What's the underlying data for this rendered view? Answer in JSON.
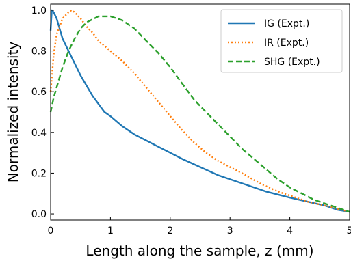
{
  "chart_data": {
    "type": "line",
    "title": "",
    "xlabel": "Length along the sample, z (mm)",
    "ylabel": "Normalized intensity",
    "xlim": [
      0,
      5
    ],
    "ylim": [
      -0.03,
      1.03
    ],
    "x_ticks": [
      0,
      1,
      2,
      3,
      4,
      5
    ],
    "x_tick_labels": [
      "0",
      "1",
      "2",
      "3",
      "4",
      "5"
    ],
    "y_ticks": [
      0.0,
      0.2,
      0.4,
      0.6,
      0.8,
      1.0
    ],
    "y_tick_labels": [
      "0.0",
      "0.2",
      "0.4",
      "0.6",
      "0.8",
      "1.0"
    ],
    "grid": false,
    "legend_position": "top-right",
    "series": [
      {
        "name": "IG (Expt.)",
        "color": "#1f77b4",
        "style": "solid",
        "x": [
          0,
          0.02,
          0.05,
          0.1,
          0.15,
          0.2,
          0.3,
          0.4,
          0.5,
          0.6,
          0.7,
          0.8,
          0.9,
          1.0,
          1.2,
          1.4,
          1.6,
          1.8,
          2.0,
          2.2,
          2.5,
          2.8,
          3.0,
          3.3,
          3.6,
          4.0,
          4.3,
          4.6,
          4.8,
          5.0
        ],
        "y": [
          0.9,
          1.0,
          0.99,
          0.96,
          0.91,
          0.86,
          0.8,
          0.74,
          0.68,
          0.63,
          0.58,
          0.54,
          0.5,
          0.48,
          0.43,
          0.39,
          0.36,
          0.33,
          0.3,
          0.27,
          0.23,
          0.19,
          0.17,
          0.14,
          0.11,
          0.08,
          0.06,
          0.04,
          0.02,
          0.01
        ]
      },
      {
        "name": "IR (Expt.)",
        "color": "#ff7f0e",
        "style": "dotted",
        "x": [
          0,
          0.05,
          0.1,
          0.2,
          0.3,
          0.35,
          0.4,
          0.5,
          0.6,
          0.7,
          0.8,
          1.0,
          1.2,
          1.4,
          1.6,
          1.8,
          2.0,
          2.2,
          2.4,
          2.6,
          2.8,
          3.0,
          3.2,
          3.5,
          3.8,
          4.0,
          4.3,
          4.6,
          5.0
        ],
        "y": [
          0.6,
          0.78,
          0.88,
          0.96,
          0.99,
          1.0,
          0.99,
          0.96,
          0.92,
          0.89,
          0.85,
          0.8,
          0.75,
          0.69,
          0.62,
          0.55,
          0.48,
          0.41,
          0.35,
          0.3,
          0.26,
          0.23,
          0.2,
          0.15,
          0.11,
          0.09,
          0.06,
          0.04,
          0.01
        ]
      },
      {
        "name": "SHG (Expt.)",
        "color": "#2ca02c",
        "style": "dashed",
        "x": [
          0,
          0.05,
          0.1,
          0.2,
          0.3,
          0.4,
          0.5,
          0.6,
          0.8,
          1.0,
          1.2,
          1.4,
          1.6,
          1.8,
          2.0,
          2.2,
          2.4,
          2.6,
          2.8,
          3.0,
          3.2,
          3.4,
          3.6,
          3.8,
          4.0,
          4.2,
          4.4,
          4.6,
          4.8,
          5.0
        ],
        "y": [
          0.5,
          0.57,
          0.62,
          0.72,
          0.8,
          0.86,
          0.91,
          0.94,
          0.97,
          0.97,
          0.95,
          0.91,
          0.85,
          0.79,
          0.72,
          0.64,
          0.56,
          0.5,
          0.44,
          0.38,
          0.32,
          0.27,
          0.22,
          0.17,
          0.13,
          0.1,
          0.07,
          0.05,
          0.03,
          0.01
        ]
      }
    ]
  }
}
